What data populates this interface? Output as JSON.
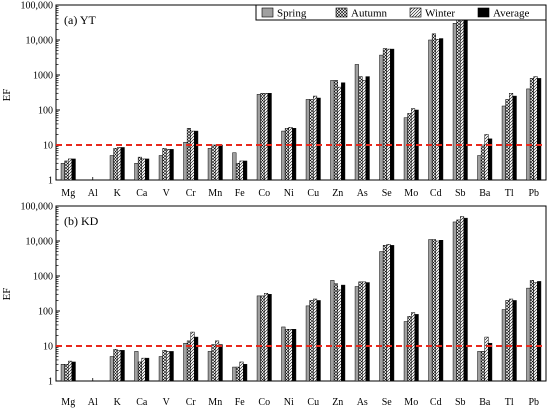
{
  "chart_data": [
    {
      "type": "bar",
      "title": "(a) YT",
      "xlabel": "",
      "ylabel": "EF",
      "yscale": "log",
      "ylim": [
        1,
        100000
      ],
      "yticks": [
        1,
        10,
        100,
        1000,
        10000,
        100000
      ],
      "ytick_labels": [
        "1",
        "10",
        "100",
        "1000",
        "10,000",
        "100,000"
      ],
      "categories": [
        "Mg",
        "Al",
        "K",
        "Ca",
        "V",
        "Cr",
        "Mn",
        "Fe",
        "Co",
        "Ni",
        "Cu",
        "Zn",
        "As",
        "Se",
        "Mo",
        "Cd",
        "Sb",
        "Ba",
        "Tl",
        "Pb"
      ],
      "reference_line": {
        "value": 10,
        "style": "dashed",
        "color": "#e8281c"
      },
      "series": [
        {
          "name": "Spring",
          "values": [
            3,
            1,
            5,
            3,
            5,
            12,
            8,
            6,
            280,
            25,
            200,
            700,
            2000,
            3700,
            60,
            10000,
            30000,
            5,
            130,
            400
          ]
        },
        {
          "name": "Autumn",
          "values": [
            3.5,
            1,
            8,
            4.5,
            8,
            30,
            10,
            3,
            300,
            30,
            200,
            700,
            900,
            5700,
            80,
            15000,
            40000,
            10,
            200,
            800
          ]
        },
        {
          "name": "Winter",
          "values": [
            4,
            1,
            8.5,
            4,
            7.5,
            25,
            10,
            3.5,
            300,
            32,
            250,
            450,
            700,
            5500,
            110,
            10500,
            45000,
            20,
            300,
            900
          ]
        },
        {
          "name": "Average",
          "values": [
            4,
            1,
            8.5,
            4,
            7.5,
            25,
            10,
            3.5,
            300,
            30,
            220,
            600,
            900,
            5500,
            100,
            11000,
            45000,
            15,
            250,
            800
          ]
        }
      ]
    },
    {
      "type": "bar",
      "title": "(b) KD",
      "xlabel": "",
      "ylabel": "EF",
      "yscale": "log",
      "ylim": [
        1,
        100000
      ],
      "yticks": [
        1,
        10,
        100,
        1000,
        10000,
        100000
      ],
      "ytick_labels": [
        "1",
        "10",
        "100",
        "1000",
        "10,000",
        "100,000"
      ],
      "categories": [
        "Mg",
        "Al",
        "K",
        "Ca",
        "V",
        "Cr",
        "Mn",
        "Fe",
        "Co",
        "Ni",
        "Cu",
        "Zn",
        "As",
        "Se",
        "Mo",
        "Cd",
        "Sb",
        "Ba",
        "Tl",
        "Pb"
      ],
      "reference_line": {
        "value": 10,
        "style": "dashed",
        "color": "#e8281c"
      },
      "series": [
        {
          "name": "Spring",
          "values": [
            3,
            1,
            5,
            7,
            5,
            12,
            7,
            2.5,
            270,
            35,
            140,
            750,
            500,
            5000,
            50,
            11000,
            35000,
            7,
            110,
            450
          ]
        },
        {
          "name": "Autumn",
          "values": [
            3,
            1,
            8,
            3.5,
            7.5,
            14,
            11,
            2.5,
            270,
            30,
            200,
            600,
            680,
            7500,
            70,
            11000,
            40000,
            7,
            200,
            750
          ]
        },
        {
          "name": "Winter",
          "values": [
            3.7,
            1,
            7.5,
            4.5,
            7,
            25,
            14,
            3.5,
            320,
            30,
            220,
            400,
            680,
            8000,
            90,
            10000,
            50000,
            18,
            220,
            650
          ]
        },
        {
          "name": "Average",
          "values": [
            3.5,
            1,
            7.5,
            4.5,
            7,
            18,
            11,
            3,
            300,
            30,
            200,
            550,
            650,
            7500,
            80,
            10500,
            45000,
            12,
            200,
            700
          ]
        }
      ]
    }
  ]
}
